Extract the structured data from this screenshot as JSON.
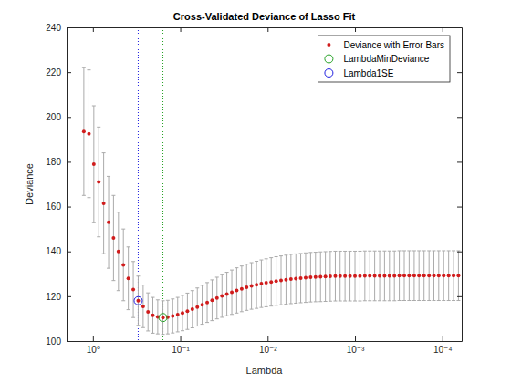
{
  "chart_data": {
    "type": "scatter",
    "title": "Cross-Validated Deviance of Lasso Fit",
    "x_label": "Lambda",
    "y_label": "Deviance",
    "log": "x",
    "grid": false,
    "legend": "northeast",
    "xlim": [
      2,
      6e-05
    ],
    "xticks": [
      {
        "value": 1,
        "label": "10⁰"
      },
      {
        "value": 0.1,
        "label": "10⁻¹"
      },
      {
        "value": 0.01,
        "label": "10⁻²"
      },
      {
        "value": 0.001,
        "label": "10⁻³"
      },
      {
        "value": 0.0001,
        "label": "10⁻⁴"
      }
    ],
    "ylim": [
      100,
      240
    ],
    "yticks": [
      100,
      120,
      140,
      160,
      180,
      200,
      220,
      240
    ],
    "x": [
      1.27,
      1.11,
      0.976,
      0.857,
      0.753,
      0.661,
      0.581,
      0.51,
      0.448,
      0.393,
      0.345,
      0.303,
      0.266,
      0.234,
      0.206,
      0.181,
      0.158,
      0.139,
      0.122,
      0.107,
      0.0943,
      0.0828,
      0.0727,
      0.0638,
      0.0561,
      0.0492,
      0.0432,
      0.038,
      0.0333,
      0.0293,
      0.0257,
      0.0226,
      0.0198,
      0.0174,
      0.0153,
      0.0134,
      0.0118,
      0.0104,
      0.0091,
      0.00799,
      0.00702,
      0.00616,
      0.00541,
      0.00475,
      0.00418,
      0.00367,
      0.00322,
      0.00283,
      0.00248,
      0.00218,
      0.00192,
      0.00168,
      0.00148,
      0.0013,
      0.00114,
      0.001,
      0.000878,
      0.000771,
      0.000677,
      0.000595,
      0.000522,
      0.000459,
      0.000403,
      0.000354,
      0.000311,
      0.000273,
      0.00024,
      0.00021,
      0.000185,
      0.000162,
      0.000142,
      0.000125,
      0.00011,
      9.65e-05,
      8.47e-05,
      7.44e-05,
      6.54e-05
    ],
    "series": [
      {
        "name": "Deviance with Error Bars",
        "color": "#d01c1c",
        "marker": "point",
        "values": [
          193.5,
          192.5,
          179,
          171,
          161.5,
          153,
          146,
          140,
          134,
          128,
          123,
          118,
          115.5,
          113,
          111.5,
          110.8,
          110.5,
          110.7,
          111.2,
          111.8,
          112.5,
          113.3,
          114.2,
          115.2,
          116.2,
          117.2,
          118.2,
          119.2,
          120.1,
          121,
          121.8,
          122.6,
          123.3,
          124,
          124.6,
          125.1,
          125.6,
          126,
          126.4,
          126.8,
          127.1,
          127.4,
          127.7,
          127.9,
          128.1,
          128.3,
          128.5,
          128.6,
          128.7,
          128.8,
          128.9,
          129,
          129,
          129,
          129,
          129,
          129,
          129.1,
          129.1,
          129.1,
          129.1,
          129.1,
          129.1,
          129.1,
          129.2,
          129.2,
          129.2,
          129.2,
          129.2,
          129.2,
          129.2,
          129.2,
          129.2,
          129.2,
          129.2,
          129.2,
          129.2
        ],
        "errors": [
          28.5,
          28.5,
          26,
          24.5,
          22.5,
          20.5,
          19,
          17.5,
          16,
          14,
          12.5,
          11,
          9.5,
          8.5,
          8,
          7.6,
          7.5,
          7.5,
          7.6,
          7.7,
          7.9,
          8.1,
          8.3,
          8.5,
          8.7,
          8.9,
          9.1,
          9.3,
          9.5,
          9.7,
          9.9,
          10.1,
          10.2,
          10.3,
          10.4,
          10.5,
          10.6,
          10.7,
          10.8,
          10.85,
          10.9,
          10.95,
          11,
          11,
          11,
          11.05,
          11.05,
          11.05,
          11.1,
          11.1,
          11.1,
          11.1,
          11.1,
          11.1,
          11.1,
          11.1,
          11.1,
          11.1,
          11.1,
          11.1,
          11.1,
          11.1,
          11.1,
          11.1,
          11.1,
          11.1,
          11.1,
          11.1,
          11.1,
          11.1,
          11.1,
          11.1,
          11.1,
          11.1,
          11.1,
          11.1,
          11.1
        ]
      },
      {
        "name": "LambdaMinDeviance",
        "color": "#22a022",
        "marker": "circle",
        "line_style": "dotted",
        "x": [
          0.158
        ],
        "values": [
          110.5
        ]
      },
      {
        "name": "Lambda1SE",
        "color": "#2020e0",
        "marker": "circle",
        "line_style": "dotted",
        "x": [
          0.303
        ],
        "values": [
          118
        ]
      }
    ]
  }
}
